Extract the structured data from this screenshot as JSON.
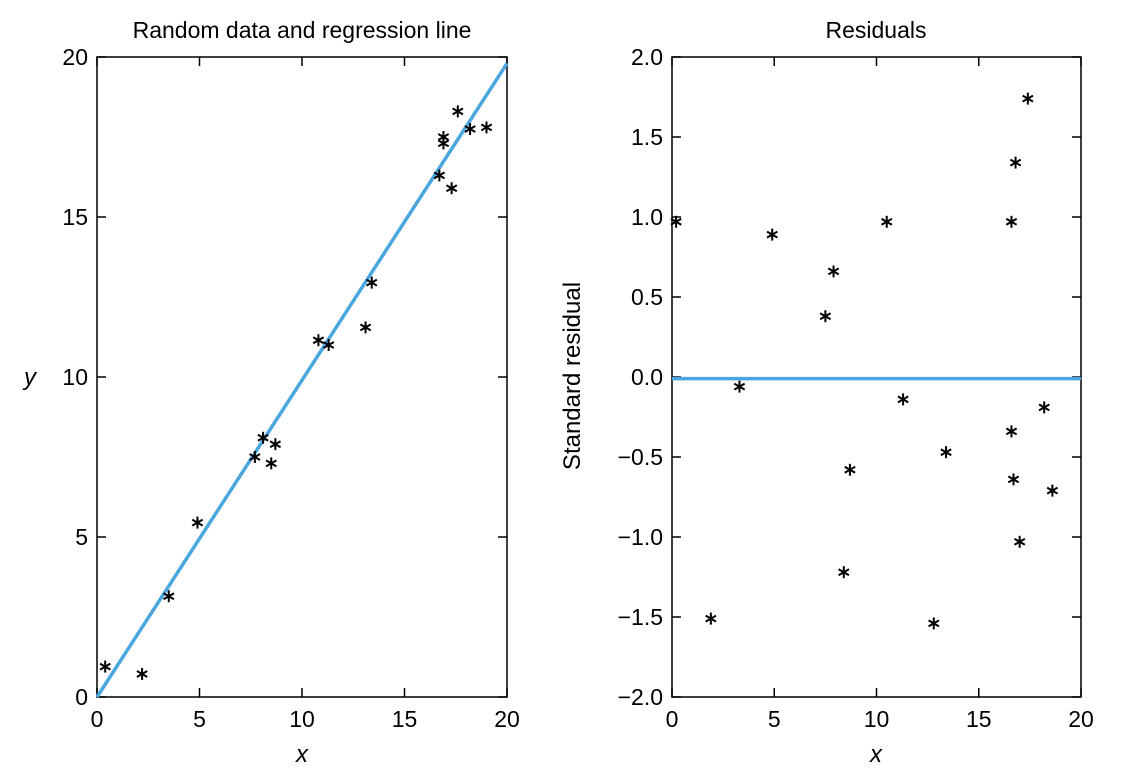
{
  "colors": {
    "fit_line": "#4aa6e0",
    "markers": "#000000"
  },
  "chart_data": [
    {
      "type": "scatter",
      "title": "Random data and regression line",
      "xlabel": "x",
      "ylabel": "y",
      "xlim": [
        0,
        20
      ],
      "ylim": [
        0,
        20
      ],
      "xticks": [
        "0",
        "5",
        "10",
        "15",
        "20"
      ],
      "yticks": [
        "0",
        "5",
        "10",
        "15",
        "20"
      ],
      "grid": false,
      "marker": "asterisk",
      "points": [
        [
          0.4,
          0.95
        ],
        [
          2.2,
          0.72
        ],
        [
          3.5,
          3.15
        ],
        [
          4.9,
          5.45
        ],
        [
          7.7,
          7.5
        ],
        [
          8.1,
          8.1
        ],
        [
          8.5,
          7.3
        ],
        [
          8.7,
          7.9
        ],
        [
          10.8,
          11.15
        ],
        [
          11.3,
          11.0
        ],
        [
          13.1,
          11.55
        ],
        [
          13.4,
          12.95
        ],
        [
          16.7,
          16.3
        ],
        [
          16.9,
          17.5
        ],
        [
          16.9,
          17.3
        ],
        [
          17.3,
          15.9
        ],
        [
          17.6,
          18.3
        ],
        [
          18.2,
          17.75
        ],
        [
          19.0,
          17.8
        ]
      ],
      "fit_line": {
        "x": [
          0,
          20
        ],
        "y": [
          0,
          19.8
        ]
      }
    },
    {
      "type": "scatter",
      "title": "Residuals",
      "xlabel": "x",
      "ylabel": "Standard residual",
      "xlim": [
        0,
        20
      ],
      "ylim": [
        -2.0,
        2.0
      ],
      "xticks": [
        "0",
        "5",
        "10",
        "15",
        "20"
      ],
      "yticks": [
        "−2.0",
        "−1.5",
        "−1.0",
        "−0.5",
        "0.0",
        "0.5",
        "1.0",
        "1.5",
        "2.0"
      ],
      "grid": false,
      "marker": "asterisk",
      "points": [
        [
          0.2,
          0.97
        ],
        [
          1.9,
          -1.51
        ],
        [
          3.3,
          -0.06
        ],
        [
          4.9,
          0.89
        ],
        [
          7.5,
          0.38
        ],
        [
          7.9,
          0.66
        ],
        [
          8.4,
          -1.22
        ],
        [
          8.7,
          -0.58
        ],
        [
          10.5,
          0.97
        ],
        [
          11.3,
          -0.14
        ],
        [
          12.8,
          -1.54
        ],
        [
          13.4,
          -0.47
        ],
        [
          16.6,
          -0.34
        ],
        [
          16.6,
          0.97
        ],
        [
          16.7,
          -0.64
        ],
        [
          16.8,
          1.34
        ],
        [
          17.0,
          -1.03
        ],
        [
          17.4,
          1.74
        ],
        [
          18.2,
          -0.19
        ],
        [
          18.6,
          -0.71
        ]
      ],
      "zero_line": {
        "y": -0.01
      }
    }
  ]
}
